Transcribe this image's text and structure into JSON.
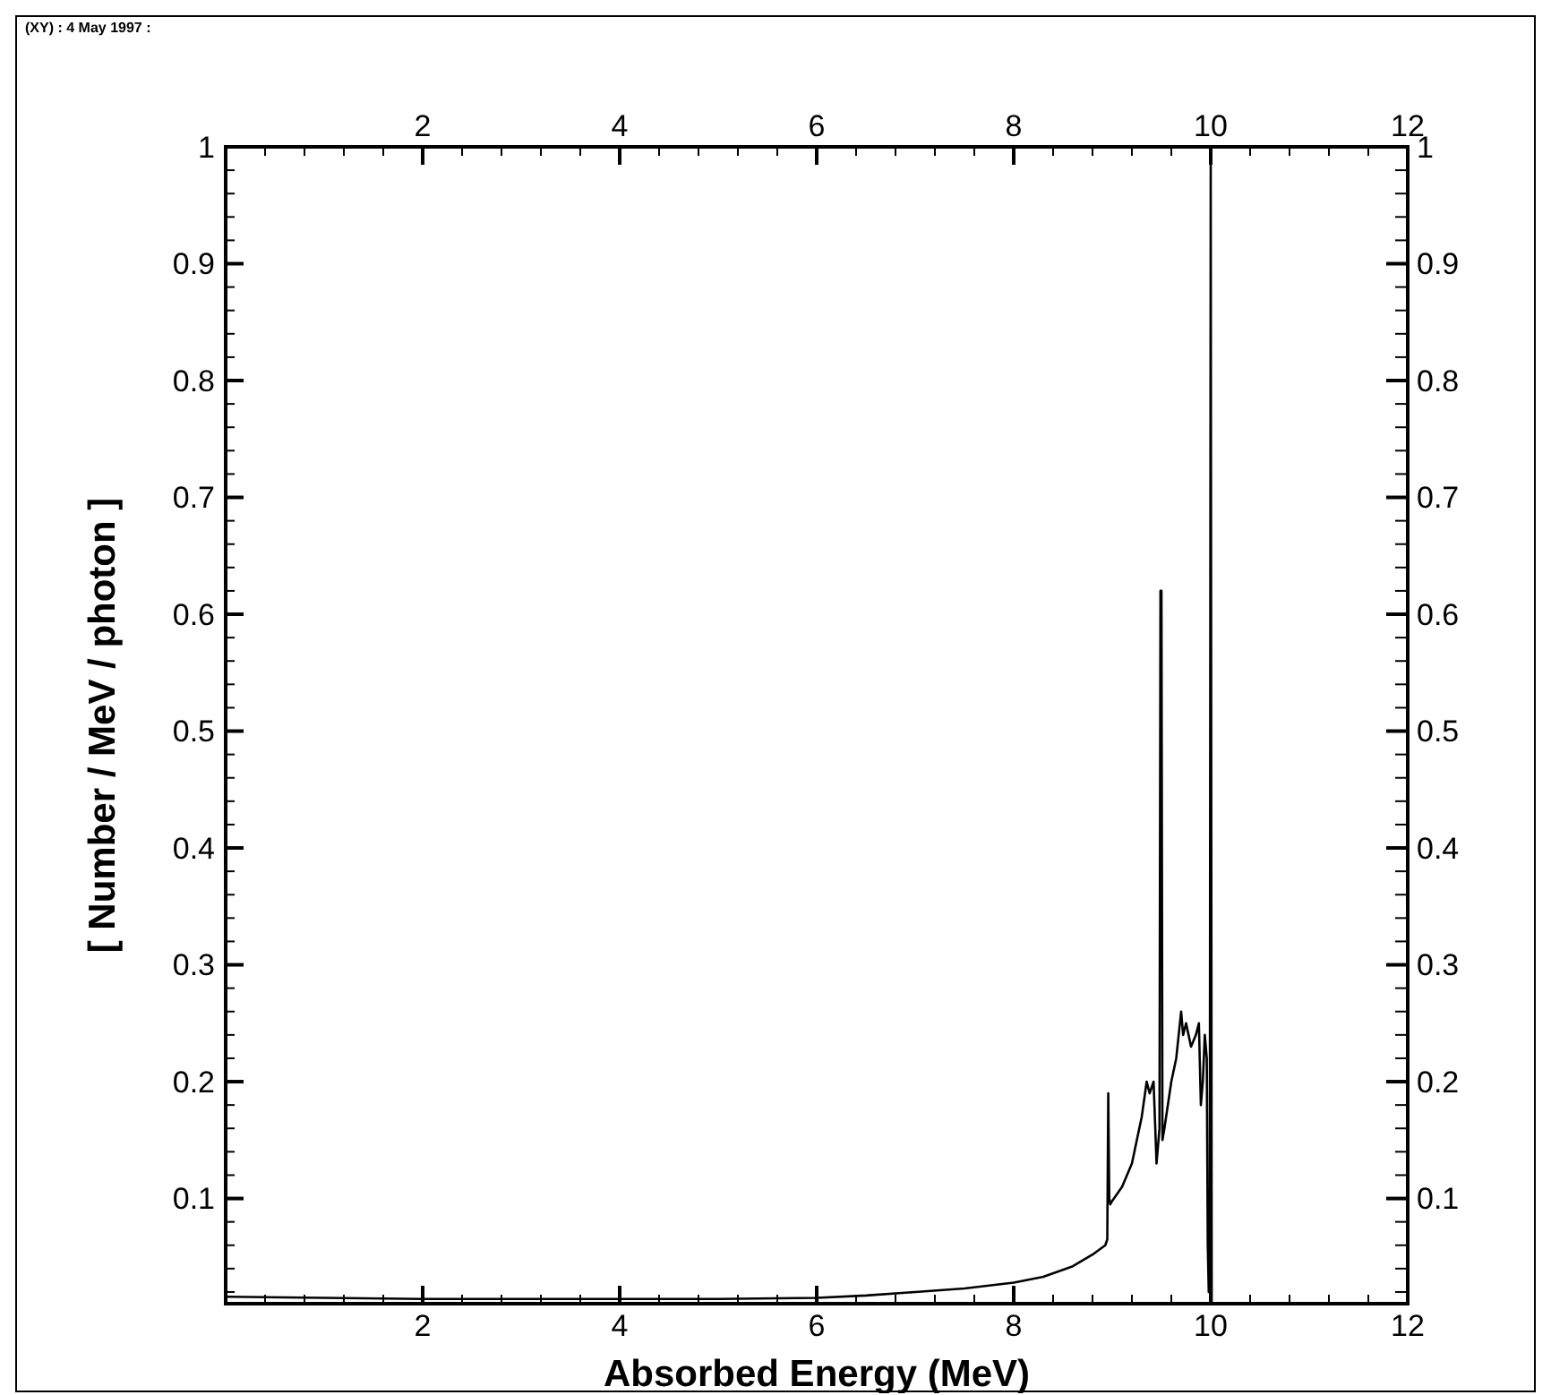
{
  "chart_data": {
    "type": "line",
    "xlabel": "Absorbed Energy (MeV)",
    "ylabel": "[ Number / MeV / photon ]",
    "annotations": [
      "(XY) : 4 May 1997 :"
    ],
    "xlim": [
      0,
      12
    ],
    "xticks": [
      2,
      4,
      6,
      8,
      10,
      12
    ],
    "x2lim": [
      0,
      12
    ],
    "x2ticks": [
      2,
      4,
      6,
      8,
      10,
      12
    ],
    "ylim": [
      0.01,
      1
    ],
    "yticks": [
      0.1,
      0.2,
      0.3,
      0.4,
      0.5,
      0.6,
      0.7,
      0.8,
      0.9,
      1
    ],
    "y2lim": [
      0.01,
      1
    ],
    "y2ticks": [
      0.1,
      0.2,
      0.3,
      0.4,
      0.5,
      0.6,
      0.7,
      0.8,
      0.9,
      1
    ],
    "grid": false,
    "marker": "none",
    "line_style": "solid",
    "series": [
      {
        "color": "#000000",
        "x": [
          0,
          1,
          2,
          3,
          4,
          5,
          6,
          6.5,
          7,
          7.5,
          8,
          8.3,
          8.6,
          8.8,
          8.93,
          8.95,
          8.96,
          8.97,
          8.98,
          9.0,
          9.1,
          9.2,
          9.3,
          9.35,
          9.38,
          9.42,
          9.45,
          9.47,
          9.48,
          9.49,
          9.5,
          9.51,
          9.53,
          9.6,
          9.65,
          9.7,
          9.72,
          9.75,
          9.8,
          9.85,
          9.88,
          9.9,
          9.92,
          9.94,
          9.96,
          9.97,
          9.98,
          9.99,
          10.0,
          10.01
        ],
        "values": [
          0.016,
          0.015,
          0.014,
          0.014,
          0.014,
          0.014,
          0.015,
          0.017,
          0.02,
          0.023,
          0.028,
          0.033,
          0.042,
          0.052,
          0.06,
          0.065,
          0.19,
          0.1,
          0.095,
          0.098,
          0.11,
          0.13,
          0.17,
          0.2,
          0.19,
          0.2,
          0.13,
          0.15,
          0.16,
          0.62,
          0.62,
          0.15,
          0.16,
          0.2,
          0.22,
          0.26,
          0.24,
          0.25,
          0.23,
          0.24,
          0.25,
          0.18,
          0.2,
          0.24,
          0.22,
          0.06,
          0.02,
          0.02,
          0.99,
          0.01
        ]
      }
    ]
  }
}
